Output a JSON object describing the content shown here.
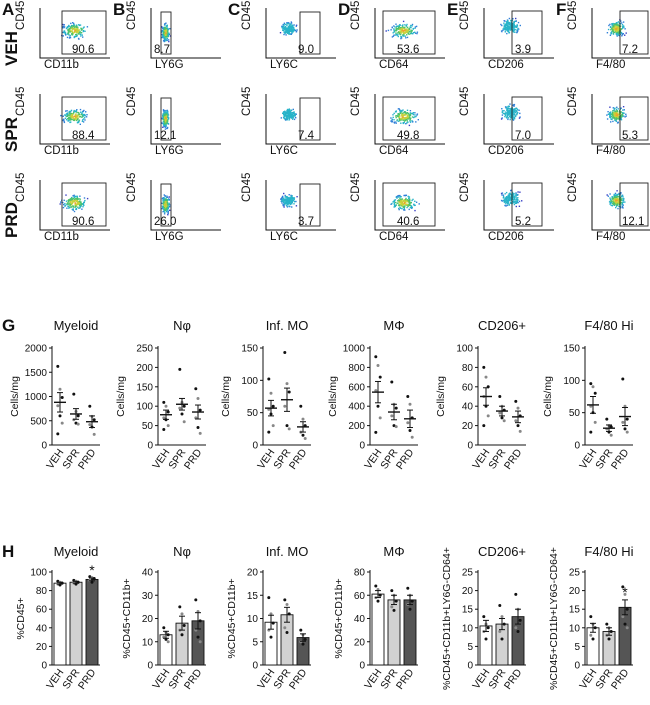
{
  "panel_letters": {
    "A": "A",
    "B": "B",
    "C": "C",
    "D": "D",
    "E": "E",
    "F": "F",
    "G": "G",
    "H": "H"
  },
  "row_labels": [
    "VEH",
    "SPR",
    "PRD"
  ],
  "facs": {
    "ylabel": "CD45",
    "columns": [
      {
        "xlabel": "CD11b",
        "values": [
          "90.6",
          "88.4",
          "90.6"
        ]
      },
      {
        "xlabel": "LY6G",
        "values": [
          "8.7",
          "12.1",
          "26.0"
        ]
      },
      {
        "xlabel": "LY6C",
        "values": [
          "9.0",
          "7.4",
          "3.7"
        ]
      },
      {
        "xlabel": "CD64",
        "values": [
          "53.6",
          "49.8",
          "40.6"
        ]
      },
      {
        "xlabel": "CD206",
        "values": [
          "3.9",
          "7.0",
          "5.2"
        ]
      },
      {
        "xlabel": "F4/80",
        "values": [
          "7.2",
          "5.3",
          "12.1"
        ]
      }
    ]
  },
  "chart_data": [
    {
      "panel": "G",
      "type": "scatter",
      "title": "Myeloid",
      "ylabel": "Cells/mg",
      "ylim": [
        0,
        2000
      ],
      "yticks": [
        0,
        500,
        1000,
        1500,
        2000
      ],
      "categories": [
        "VEH",
        "SPR",
        "PRD"
      ],
      "means": [
        880,
        640,
        480
      ],
      "errors": [
        200,
        110,
        120
      ],
      "points": [
        [
          1620,
          1150,
          980,
          810,
          600,
          450,
          230
        ],
        [
          1050,
          690,
          600,
          520,
          450,
          430
        ],
        [
          800,
          590,
          520,
          420,
          370,
          220
        ]
      ],
      "significant": [
        false,
        false,
        false
      ]
    },
    {
      "panel": "G",
      "type": "scatter",
      "title": "Nφ",
      "ylabel": "Cells/mg",
      "ylim": [
        0,
        250
      ],
      "yticks": [
        0,
        50,
        100,
        150,
        200,
        250
      ],
      "categories": [
        "VEH",
        "SPR",
        "PRD"
      ],
      "means": [
        78,
        105,
        85
      ],
      "errors": [
        12,
        15,
        18
      ],
      "points": [
        [
          110,
          100,
          85,
          70,
          65,
          50,
          40
        ],
        [
          195,
          110,
          100,
          95,
          80,
          60
        ],
        [
          145,
          120,
          90,
          70,
          45,
          30
        ]
      ],
      "significant": [
        false,
        false,
        false
      ]
    },
    {
      "panel": "G",
      "type": "scatter",
      "title": "Inf. MO",
      "ylabel": "Cells/mg",
      "ylim": [
        0,
        150
      ],
      "yticks": [
        0,
        50,
        100,
        150
      ],
      "categories": [
        "VEH",
        "SPR",
        "PRD"
      ],
      "means": [
        57,
        70,
        28
      ],
      "errors": [
        12,
        18,
        8
      ],
      "points": [
        [
          102,
          80,
          60,
          55,
          48,
          30,
          20
        ],
        [
          143,
          95,
          82,
          60,
          30,
          25
        ],
        [
          60,
          40,
          30,
          20,
          15,
          10
        ]
      ],
      "significant": [
        false,
        false,
        false
      ]
    },
    {
      "panel": "G",
      "type": "scatter",
      "title": "MΦ",
      "ylabel": "Cells/mg",
      "ylim": [
        0,
        1000
      ],
      "yticks": [
        0,
        200,
        400,
        600,
        800,
        1000
      ],
      "categories": [
        "VEH",
        "SPR",
        "PRD"
      ],
      "means": [
        545,
        340,
        270
      ],
      "errors": [
        110,
        80,
        90
      ],
      "points": [
        [
          910,
          820,
          700,
          560,
          400,
          280,
          130
        ],
        [
          650,
          420,
          380,
          300,
          200,
          190
        ],
        [
          500,
          420,
          280,
          230,
          150,
          80
        ]
      ],
      "significant": [
        false,
        false,
        false
      ]
    },
    {
      "panel": "G",
      "type": "scatter",
      "title": "CD206+",
      "ylabel": "Cells/mg",
      "ylim": [
        0,
        100
      ],
      "yticks": [
        0,
        20,
        40,
        60,
        80,
        100
      ],
      "categories": [
        "VEH",
        "SPR",
        "PRD"
      ],
      "means": [
        50,
        35,
        29
      ],
      "errors": [
        9,
        5,
        6
      ],
      "points": [
        [
          80,
          70,
          60,
          50,
          40,
          30,
          20
        ],
        [
          50,
          40,
          36,
          33,
          28,
          25
        ],
        [
          45,
          38,
          30,
          25,
          20,
          14
        ]
      ],
      "significant": [
        false,
        false,
        false
      ]
    },
    {
      "panel": "G",
      "type": "scatter",
      "title": "F4/80 Hi",
      "ylabel": "Cells/mg",
      "ylim": [
        0,
        150
      ],
      "yticks": [
        0,
        50,
        100,
        150
      ],
      "categories": [
        "VEH",
        "SPR",
        "PRD"
      ],
      "means": [
        62,
        26,
        44
      ],
      "errors": [
        13,
        5,
        14
      ],
      "points": [
        [
          95,
          90,
          80,
          60,
          50,
          35,
          20
        ],
        [
          40,
          30,
          28,
          25,
          20,
          15
        ],
        [
          102,
          60,
          40,
          35,
          25,
          20
        ]
      ],
      "significant": [
        false,
        false,
        false
      ]
    },
    {
      "panel": "H",
      "type": "bar",
      "title": "Myeloid",
      "ylabel": "%CD45+",
      "ylim": [
        0,
        100
      ],
      "yticks": [
        0,
        20,
        40,
        60,
        80,
        100
      ],
      "categories": [
        "VEH",
        "SPR",
        "PRD"
      ],
      "means": [
        88,
        89,
        92
      ],
      "errors": [
        1,
        1,
        1.5
      ],
      "points": [
        [
          90,
          89,
          88,
          87,
          86
        ],
        [
          91,
          90,
          89,
          88,
          87
        ],
        [
          95,
          94,
          93,
          91,
          89
        ]
      ],
      "significant": [
        false,
        false,
        true
      ]
    },
    {
      "panel": "H",
      "type": "bar",
      "title": "Nφ",
      "ylabel": "%CD45+CD11b+",
      "ylim": [
        0,
        40
      ],
      "yticks": [
        0,
        10,
        20,
        30,
        40
      ],
      "categories": [
        "VEH",
        "SPR",
        "PRD"
      ],
      "means": [
        13,
        18,
        19
      ],
      "errors": [
        1.5,
        3,
        3.5
      ],
      "points": [
        [
          16,
          14,
          13,
          12,
          11,
          10
        ],
        [
          25,
          22,
          17,
          15,
          13
        ],
        [
          28,
          23,
          19,
          15,
          12,
          10
        ]
      ],
      "significant": [
        false,
        false,
        false
      ]
    },
    {
      "panel": "H",
      "type": "bar",
      "title": "Inf. MO",
      "ylabel": "%CD45+CD11b+",
      "ylim": [
        0,
        20
      ],
      "yticks": [
        0,
        5,
        10,
        15,
        20
      ],
      "categories": [
        "VEH",
        "SPR",
        "PRD"
      ],
      "means": [
        9.2,
        10.8,
        5.9
      ],
      "errors": [
        1.5,
        1.6,
        0.8
      ],
      "points": [
        [
          14.5,
          11,
          9,
          7.5,
          6
        ],
        [
          14,
          13,
          11,
          8,
          7
        ],
        [
          7.5,
          6.5,
          5.5,
          5,
          4.5
        ]
      ],
      "significant": [
        false,
        false,
        false
      ]
    },
    {
      "panel": "H",
      "type": "bar",
      "title": "MΦ",
      "ylabel": "%CD45+CD11b+",
      "ylim": [
        0,
        80
      ],
      "yticks": [
        0,
        20,
        40,
        60,
        80
      ],
      "categories": [
        "VEH",
        "SPR",
        "PRD"
      ],
      "means": [
        61,
        56,
        56
      ],
      "errors": [
        3,
        4,
        4
      ],
      "points": [
        [
          68,
          65,
          60,
          58,
          55
        ],
        [
          64,
          60,
          55,
          50,
          47
        ],
        [
          66,
          60,
          55,
          52,
          48
        ]
      ],
      "significant": [
        false,
        false,
        false
      ]
    },
    {
      "panel": "H",
      "type": "bar",
      "title": "CD206+",
      "ylabel": "%CD45+CD11b+LY6G-CD64+",
      "ylim": [
        0,
        25
      ],
      "yticks": [
        0,
        5,
        10,
        15,
        20,
        25
      ],
      "categories": [
        "VEH",
        "SPR",
        "PRD"
      ],
      "means": [
        10.5,
        11,
        13
      ],
      "errors": [
        1.5,
        1.5,
        2
      ],
      "points": [
        [
          13,
          11,
          10,
          9,
          7
        ],
        [
          16,
          13,
          11,
          9,
          7
        ],
        [
          19,
          15,
          12,
          10,
          9
        ]
      ],
      "significant": [
        false,
        false,
        false
      ]
    },
    {
      "panel": "H",
      "type": "bar",
      "title": "F4/80 Hi",
      "ylabel": "%CD45+CD11b+LY6G-CD64+",
      "ylim": [
        0,
        25
      ],
      "yticks": [
        0,
        5,
        10,
        15,
        20,
        25
      ],
      "categories": [
        "VEH",
        "SPR",
        "PRD"
      ],
      "means": [
        10,
        9,
        15.5
      ],
      "errors": [
        1.2,
        1,
        2
      ],
      "points": [
        [
          13,
          11,
          10,
          8,
          7
        ],
        [
          11,
          10,
          9,
          8,
          7
        ],
        [
          21,
          19,
          15,
          13,
          11,
          10
        ]
      ],
      "significant": [
        false,
        false,
        true
      ]
    }
  ],
  "significance_marker": "*",
  "colors": {
    "VEH": "#ffffff",
    "SPR": "#d2d2d2",
    "PRD": "#555555",
    "ink": "#111111"
  }
}
